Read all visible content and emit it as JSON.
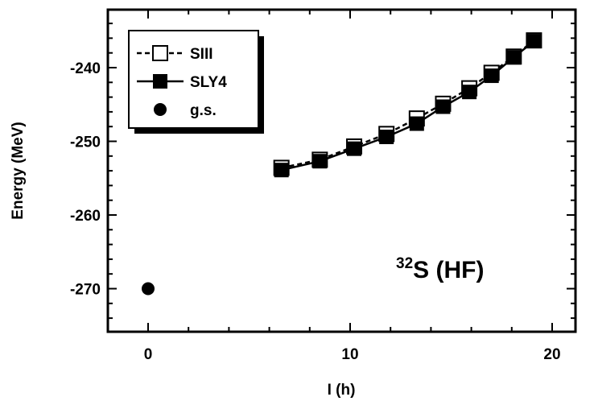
{
  "chart_data": {
    "type": "line",
    "xlabel": "I (h)",
    "ylabel": "Energy (MeV)",
    "xlim": [
      -2,
      22
    ],
    "ylim": [
      -276,
      -233
    ],
    "xticks": [
      0,
      10,
      20
    ],
    "yticks": [
      -240,
      -250,
      -260,
      -270
    ],
    "xtick_labels": [
      "0",
      "10",
      "20"
    ],
    "ytick_labels": [
      "-240",
      "-250",
      "-260",
      "-270"
    ],
    "grid": false,
    "legend_position": "top-left",
    "series": [
      {
        "name": "SIII",
        "style": "dashed",
        "marker": "open-square",
        "x": [
          6.6,
          8.5,
          10.2,
          11.8,
          13.3,
          14.6,
          15.9,
          17.0,
          18.1,
          19.1
        ],
        "y": [
          -253.6,
          -252.5,
          -250.7,
          -249.0,
          -246.9,
          -244.9,
          -242.8,
          -240.7,
          -238.5,
          -236.3
        ]
      },
      {
        "name": "SLY4",
        "style": "solid",
        "marker": "filled-square",
        "x": [
          6.6,
          8.5,
          10.2,
          11.8,
          13.3,
          14.6,
          15.9,
          17.0,
          18.1,
          19.1
        ],
        "y": [
          -253.9,
          -252.7,
          -251.0,
          -249.4,
          -247.6,
          -245.3,
          -243.3,
          -241.1,
          -238.6,
          -236.4
        ]
      },
      {
        "name": "g.s.",
        "style": "none",
        "marker": "filled-circle",
        "x": [
          0
        ],
        "y": [
          -270
        ]
      }
    ],
    "annotation": {
      "superscript": "32",
      "text": "S (HF)"
    }
  }
}
